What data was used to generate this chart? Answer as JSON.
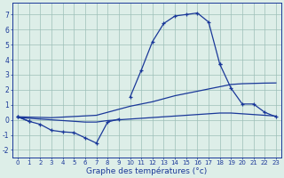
{
  "title": "Graphe des températures (°c)",
  "hours": [
    0,
    1,
    2,
    3,
    4,
    5,
    6,
    7,
    8,
    9,
    10,
    11,
    12,
    13,
    14,
    15,
    16,
    17,
    18,
    19,
    20,
    21,
    22,
    23
  ],
  "y_top": [
    0.2,
    -0.1,
    null,
    null,
    null,
    null,
    null,
    null,
    null,
    null,
    1.5,
    3.3,
    5.2,
    6.4,
    6.9,
    7.0,
    7.1,
    6.5,
    3.7,
    null,
    null,
    null,
    null,
    null
  ],
  "y_bot": [
    0.2,
    -0.1,
    -0.3,
    -0.7,
    -0.8,
    -0.85,
    -1.2,
    -1.55,
    -0.15,
    0.05,
    null,
    null,
    null,
    null,
    null,
    null,
    null,
    null,
    3.7,
    2.1,
    1.05,
    1.05,
    0.5,
    0.2
  ],
  "y_mid1": [
    0.2,
    0.18,
    0.16,
    0.14,
    0.18,
    0.22,
    0.26,
    0.3,
    0.5,
    0.7,
    0.9,
    1.05,
    1.2,
    1.4,
    1.6,
    1.75,
    1.9,
    2.05,
    2.2,
    2.35,
    2.4,
    2.42,
    2.44,
    2.45
  ],
  "y_mid2": [
    0.15,
    0.1,
    0.05,
    0.0,
    -0.05,
    -0.1,
    -0.15,
    -0.15,
    -0.05,
    0.0,
    0.05,
    0.1,
    0.15,
    0.2,
    0.25,
    0.3,
    0.35,
    0.4,
    0.45,
    0.45,
    0.4,
    0.35,
    0.3,
    0.25
  ],
  "bg_color": "#ddeee8",
  "line_color": "#1a3899",
  "grid_color": "#9dbfb8",
  "ylim": [
    -2.5,
    7.8
  ],
  "yticks": [
    -2,
    -1,
    0,
    1,
    2,
    3,
    4,
    5,
    6,
    7
  ],
  "marker": "+"
}
